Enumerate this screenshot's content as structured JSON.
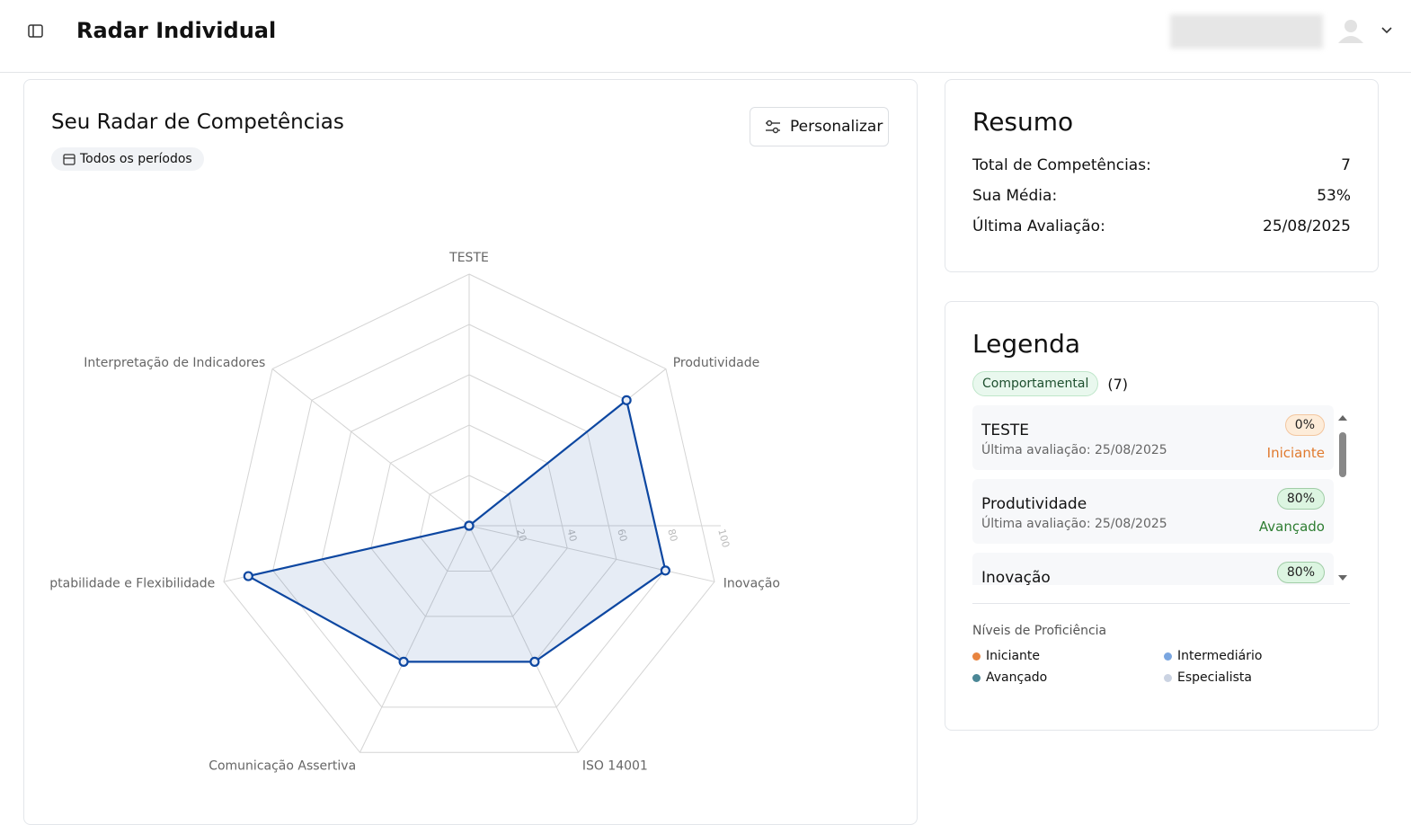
{
  "header": {
    "title": "Radar Individual"
  },
  "chart_data": {
    "type": "radar",
    "title": "Seu Radar de Competências",
    "subtitle": "Todos os períodos",
    "categories": [
      "TESTE",
      "Produtividade",
      "Inovação",
      "ISO 14001",
      "Comunicação Assertiva",
      "Adaptabilidade e Flexibilidade",
      "Interpretação de Indicadores"
    ],
    "series": [
      {
        "color": "#0d47a1",
        "values": [
          0,
          80,
          80,
          60,
          60,
          90,
          0
        ]
      }
    ],
    "ylim": [
      0,
      100
    ],
    "yticks": [
      20,
      40,
      60,
      80,
      100
    ],
    "grid": true
  },
  "toolbar": {
    "customize": "Personalizar"
  },
  "summary": {
    "title": "Resumo",
    "rows": [
      [
        "Total de Competências:",
        "7"
      ],
      [
        "Sua Média:",
        "53%"
      ],
      [
        "Última Avaliação:",
        "25/08/2025"
      ]
    ]
  },
  "legend": {
    "title": "Legenda",
    "group": "Comportamental",
    "count": "(7)",
    "items": [
      {
        "name": "TESTE",
        "date": "Última avaliação: 25/08/2025",
        "percent": "0%",
        "level": "Iniciante",
        "color": "#e07a2e",
        "badge": "#fdecd9"
      },
      {
        "name": "Produtividade",
        "date": "Última avaliação: 25/08/2025",
        "percent": "80%",
        "level": "Avançado",
        "color": "#2e7d32",
        "badge": "#dcf5e1"
      },
      {
        "name": "Inovação",
        "percent": "80%",
        "color": "#2e7d32",
        "badge": "#dcf5e1"
      }
    ],
    "levels_title": "Níveis de Proficiência",
    "levels": [
      {
        "name": "Iniciante",
        "color": "#e8843f"
      },
      {
        "name": "Intermediário",
        "color": "#7aa6e0"
      },
      {
        "name": "Avançado",
        "color": "#4b8796"
      },
      {
        "name": "Especialista",
        "color": "#cbd3e2"
      }
    ]
  }
}
